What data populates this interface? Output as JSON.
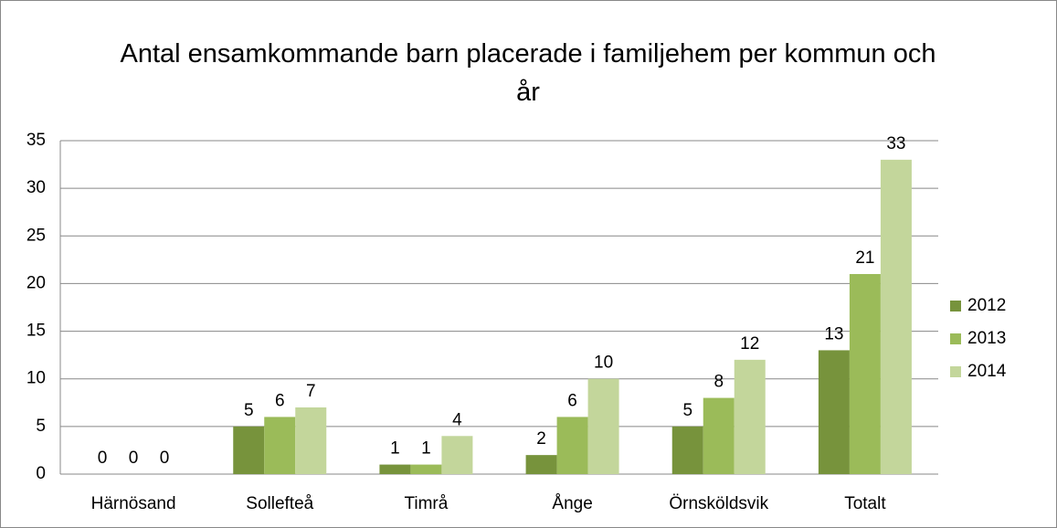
{
  "chart_data": {
    "type": "bar",
    "title": "Antal ensamkommande barn placerade i familjehem per kommun och år",
    "categories": [
      "Härnösand",
      "Sollefteå",
      "Timrå",
      "Ånge",
      "Örnsköldsvik",
      "Totalt"
    ],
    "series": [
      {
        "name": "2012",
        "color": "#77933c",
        "values": [
          0,
          5,
          1,
          2,
          5,
          13
        ]
      },
      {
        "name": "2013",
        "color": "#9bbb59",
        "values": [
          0,
          6,
          1,
          6,
          8,
          21
        ]
      },
      {
        "name": "2014",
        "color": "#c3d69b",
        "values": [
          0,
          7,
          4,
          10,
          12,
          33
        ]
      }
    ],
    "ylim": [
      0,
      35
    ],
    "yticks": [
      0,
      5,
      10,
      15,
      20,
      25,
      30,
      35
    ],
    "grid": true,
    "legend": "right"
  }
}
